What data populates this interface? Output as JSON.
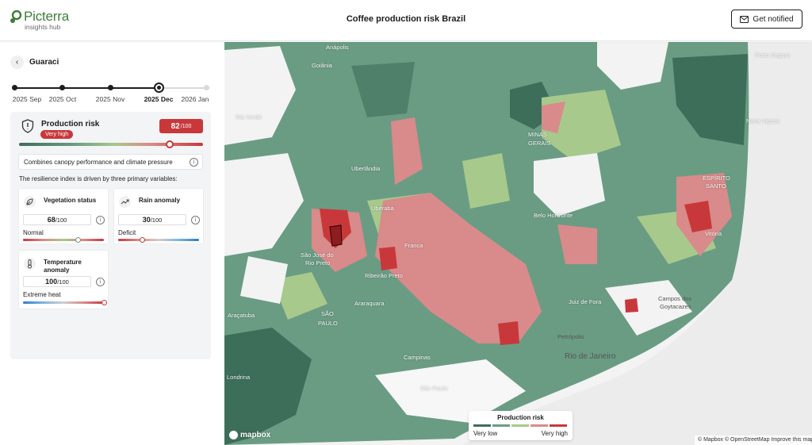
{
  "header": {
    "logo_word": "Picterra",
    "logo_sub": "insights hub",
    "title": "Coffee production risk Brazil",
    "notify_label": "Get notified"
  },
  "sidebar": {
    "location": "Guaraci",
    "timeline": [
      "2025 Sep",
      "2025 Oct",
      "2025 Nov",
      "2025 Dec",
      "2026 Jan"
    ],
    "timeline_active": "2025 Dec",
    "production_risk": {
      "title": "Production risk",
      "badge": "Very high",
      "score": "82",
      "score_max": "/100",
      "level": 0.82
    },
    "description": "Combines canopy performance and climate pressure",
    "drivers_text": "The resilience index is driven by three primary variables:",
    "cards": {
      "vegetation": {
        "title": "Vegetation status",
        "value": "68",
        "max": "/100",
        "state": "Normal",
        "level": 0.68
      },
      "rain": {
        "title": "Rain anomaly",
        "value": "30",
        "max": "/100",
        "state": "Deficit",
        "level": 0.3
      },
      "temperature": {
        "title": "Temperature anomaly",
        "value": "100",
        "max": "/100",
        "state": "Extreme heat",
        "level": 1.0
      }
    }
  },
  "map": {
    "labels": {
      "goiania": "Goiânia",
      "rio_verde": "Rio Verde",
      "uberlandia": "Uberlândia",
      "uberaba": "Uberaba",
      "minas": "MINAS",
      "gerais": "GERAIS",
      "belo_horizonte": "Belo Horizonte",
      "franca": "Franca",
      "sao_jose": "São José do",
      "rio_preto": "Rio Preto",
      "ribeirao": "Ribeirão Preto",
      "sao": "SÃO",
      "paulo": "PAULO",
      "araraquara": "Araraquara",
      "campinas": "Campinas",
      "sao_paulo": "São Paulo",
      "rio": "Rio de Janeiro",
      "juiz": "Juiz de Fora",
      "vitoria": "Vitória",
      "espirito": "ESPÍRITO",
      "santo": "SANTO",
      "campos": "Campos dos",
      "goytacazes": "Goytacazes",
      "petropolis": "Petrópolis",
      "porto_seguro": "Porto Seguro",
      "londrina": "Londrina",
      "nova_vicosa": "Nova Viçosa",
      "anapolis": "Anápolis",
      "aracatuba": "Araçatuba"
    },
    "legend": {
      "title": "Production risk",
      "low": "Very low",
      "high": "Very high",
      "colors": [
        "#3d6e5a",
        "#6a9c84",
        "#a7c98c",
        "#d98a8a",
        "#c8383b"
      ]
    },
    "mapbox": "mapbox",
    "attribution": "© Mapbox © OpenStreetMap Improve this map"
  }
}
